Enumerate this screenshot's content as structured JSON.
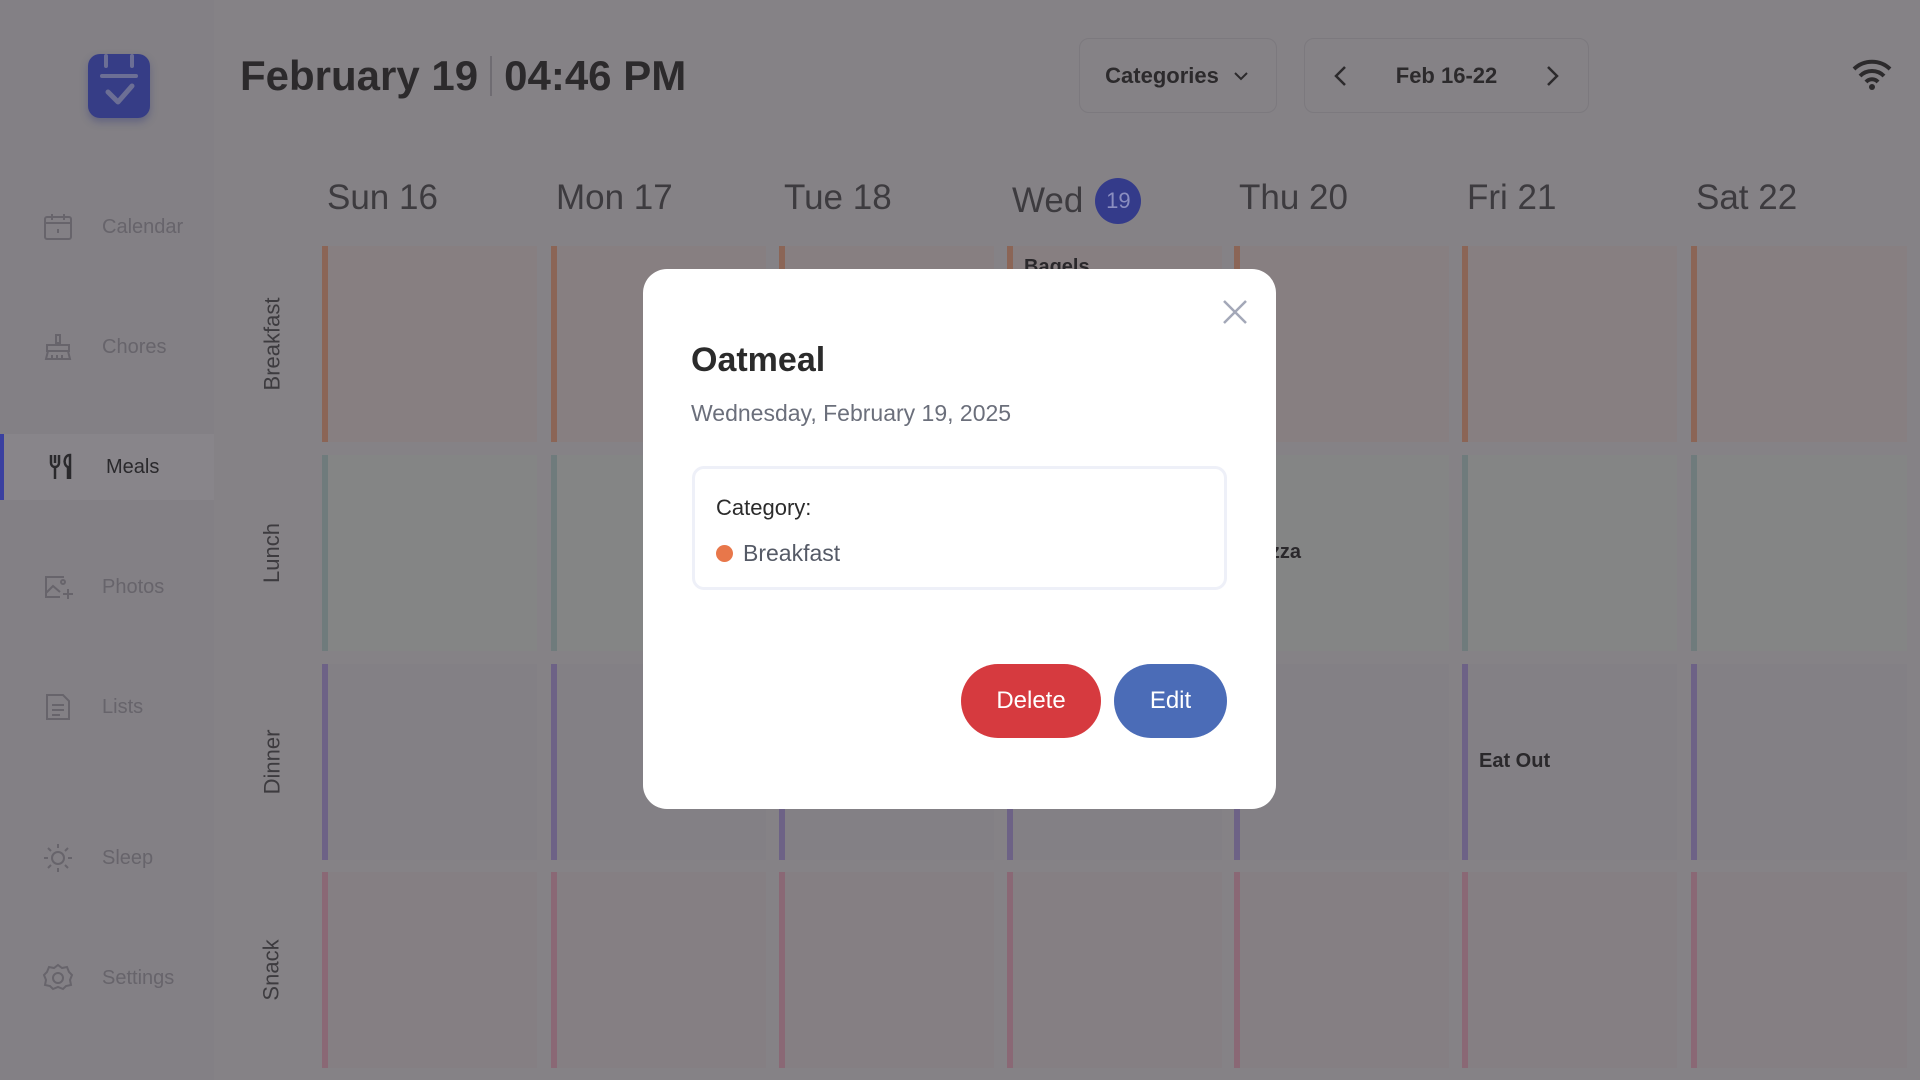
{
  "header": {
    "date": "February 19",
    "time": "04:46 PM",
    "categories_label": "Categories",
    "week_range": "Feb 16-22"
  },
  "sidebar": {
    "items": [
      {
        "label": "Calendar",
        "icon": "calendar-icon"
      },
      {
        "label": "Chores",
        "icon": "broom-icon"
      },
      {
        "label": "Meals",
        "icon": "utensils-icon",
        "active": true
      },
      {
        "label": "Photos",
        "icon": "photo-add-icon"
      },
      {
        "label": "Lists",
        "icon": "list-icon"
      },
      {
        "label": "Sleep",
        "icon": "sun-icon"
      },
      {
        "label": "Settings",
        "icon": "gear-icon"
      }
    ]
  },
  "days": [
    {
      "label": "Sun 16"
    },
    {
      "label": "Mon 17"
    },
    {
      "label": "Tue 18"
    },
    {
      "label": "Wed",
      "badge": "19"
    },
    {
      "label": "Thu 20"
    },
    {
      "label": "Fri 21"
    },
    {
      "label": "Sat 22"
    }
  ],
  "rows": [
    {
      "label": "Breakfast",
      "color": "#8b6556"
    },
    {
      "label": "Lunch",
      "color": "#6f7b7c"
    },
    {
      "label": "Dinner",
      "color": "#6d6286"
    },
    {
      "label": "Snack",
      "color": "#8a6875"
    }
  ],
  "meals": [
    {
      "day": 3,
      "row": 0,
      "name": "Bagels"
    },
    {
      "day": 4,
      "row": 1,
      "name": "Pizza"
    },
    {
      "day": 5,
      "row": 2,
      "name": "Eat Out"
    }
  ],
  "modal": {
    "title": "Oatmeal",
    "date": "Wednesday, February 19, 2025",
    "category_label": "Category:",
    "category_value": "Breakfast",
    "category_color": "#e8774a",
    "delete_label": "Delete",
    "edit_label": "Edit",
    "delete_color": "#d63a3f",
    "edit_color": "#4b6cb7"
  }
}
